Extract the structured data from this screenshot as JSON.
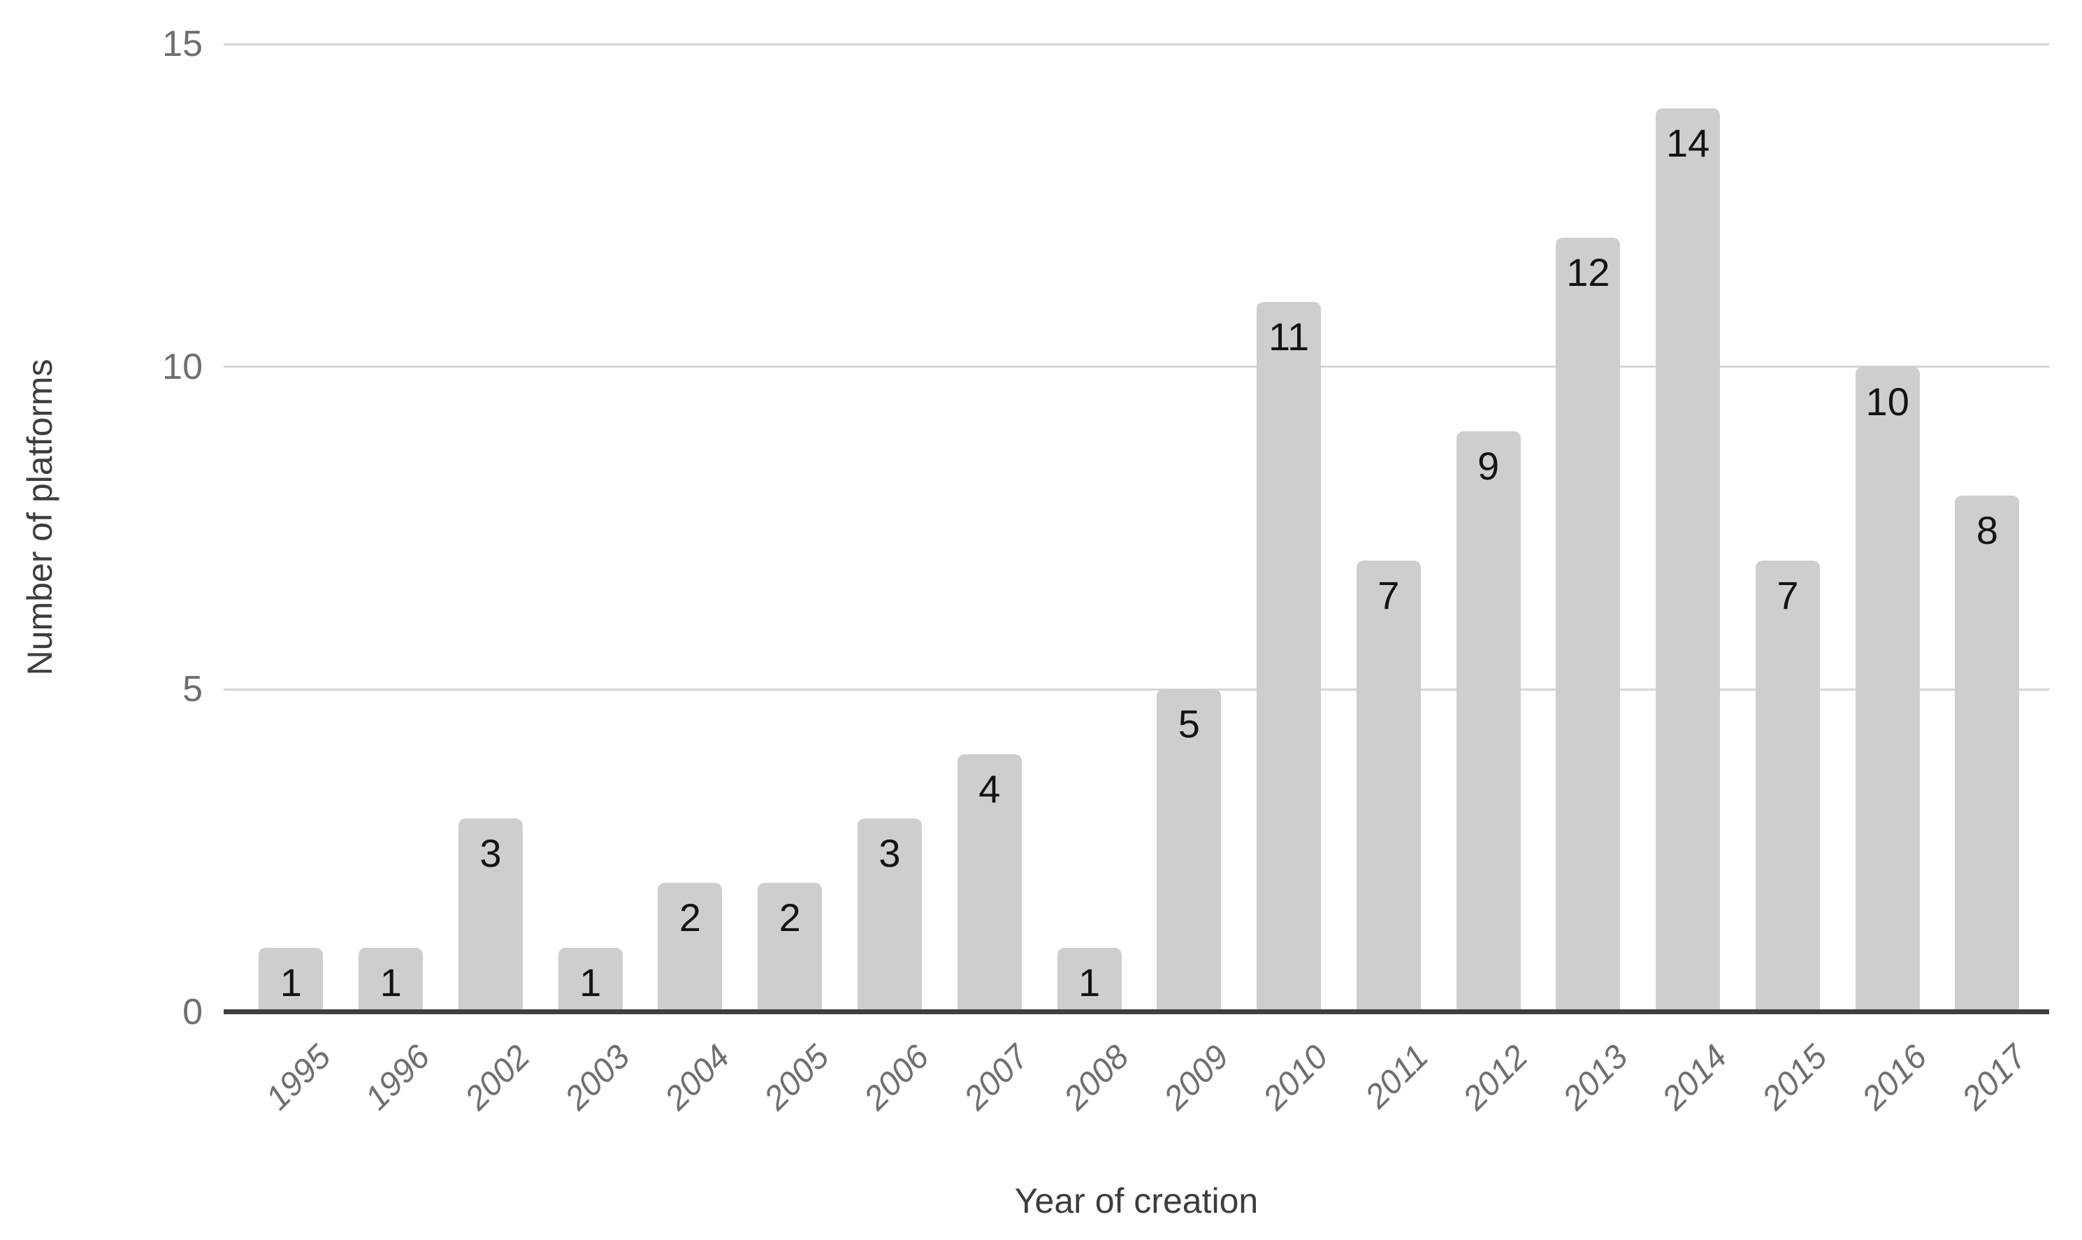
{
  "chart_data": {
    "type": "bar",
    "title": "",
    "xlabel": "Year of creation",
    "ylabel": "Number of platforms",
    "categories": [
      "1995",
      "1996",
      "2002",
      "2003",
      "2004",
      "2005",
      "2006",
      "2007",
      "2008",
      "2009",
      "2010",
      "2011",
      "2012",
      "2013",
      "2014",
      "2015",
      "2016",
      "2017"
    ],
    "values": [
      1,
      1,
      3,
      1,
      2,
      2,
      3,
      4,
      1,
      5,
      11,
      7,
      9,
      12,
      14,
      7,
      10,
      8
    ],
    "yticks": [
      0,
      5,
      10,
      15
    ],
    "ylim": [
      0,
      15
    ],
    "grid": true,
    "legend_position": "none",
    "bar_data_labels_visible": true,
    "colors": {
      "background": "#ffffff",
      "bar_fill": "#cecece",
      "bar_label": "#141414",
      "tick_label": "#6f6f6f",
      "axis_title": "#3d3d3d",
      "gridline": "#d6d6d6",
      "axis_line": "#3f3f3f"
    }
  }
}
